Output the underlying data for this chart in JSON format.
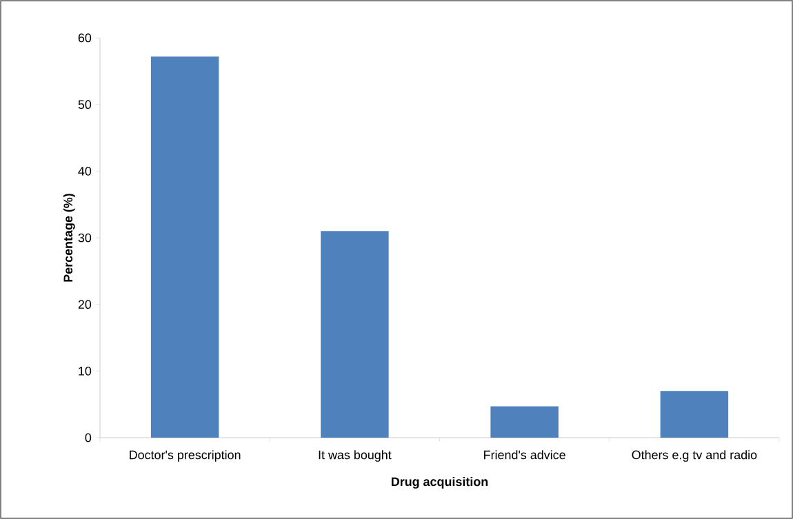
{
  "chart_data": {
    "type": "bar",
    "xlabel": "Drug acquisition",
    "ylabel": "Percentage (%)",
    "categories": [
      "Doctor's prescription",
      "It was bought",
      "Friend's advice",
      "Others e.g tv and radio"
    ],
    "values": [
      57.2,
      31.0,
      4.7,
      7.0
    ],
    "color": "#4f81bd",
    "ylim": [
      0,
      60
    ],
    "yticks": [
      0,
      10,
      20,
      30,
      40,
      50,
      60
    ]
  }
}
